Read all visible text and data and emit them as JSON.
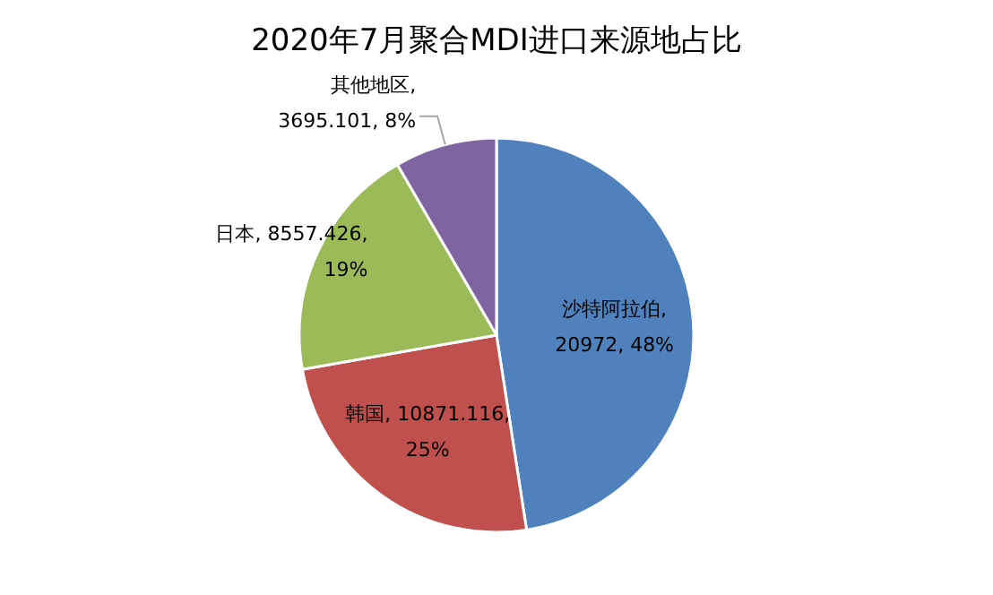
{
  "chart_data": {
    "type": "pie",
    "title": "2020年7月聚合MDI进口来源地占比",
    "categories": [
      "沙特阿拉伯",
      "韩国",
      "日本",
      "其他地区"
    ],
    "values": [
      20972,
      10871.116,
      8557.426,
      3695.101
    ],
    "value_labels": [
      ", 20972, 48%",
      ", 10871.116, 25%",
      ", 8557.426, 19%",
      ", 3695.101, 8%"
    ],
    "colors": [
      "#4f81bd",
      "#c0504d",
      "#9bbb59",
      "#8064a2"
    ]
  }
}
